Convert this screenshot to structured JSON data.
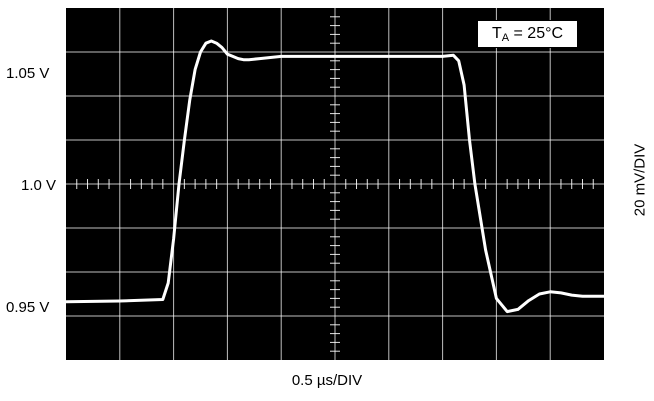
{
  "chart_data": {
    "type": "line",
    "title": "",
    "xlabel": "0.5 µs/DIV",
    "ylabel": "20 mV/DIV",
    "annotation": {
      "symbol": "T",
      "subscript": "A",
      "value": " = 25°C"
    },
    "y_ticks": [
      "1.05 V",
      "1.0 V",
      "0.95 V"
    ],
    "grid": true,
    "x_divisions": 10,
    "y_divisions": 8,
    "xlim": [
      0,
      5
    ],
    "ylim": [
      0.92,
      1.08
    ],
    "series": [
      {
        "color": "#ffffff",
        "x": [
          0,
          0.5,
          0.9,
          0.95,
          1.0,
          1.05,
          1.1,
          1.15,
          1.2,
          1.25,
          1.3,
          1.35,
          1.4,
          1.45,
          1.5,
          1.55,
          1.6,
          1.65,
          1.7,
          1.8,
          1.9,
          2.0,
          2.2,
          2.5,
          3.0,
          3.5,
          3.6,
          3.65,
          3.7,
          3.75,
          3.8,
          3.9,
          4.0,
          4.1,
          4.2,
          4.3,
          4.4,
          4.5,
          4.6,
          4.7,
          4.8,
          4.9,
          5.0
        ],
        "y": [
          0.9465,
          0.9468,
          0.9475,
          0.955,
          0.975,
          1.0,
          1.02,
          1.038,
          1.052,
          1.06,
          1.064,
          1.065,
          1.064,
          1.062,
          1.059,
          1.058,
          1.057,
          1.0565,
          1.0565,
          1.057,
          1.0575,
          1.058,
          1.058,
          1.058,
          1.058,
          1.058,
          1.0585,
          1.056,
          1.045,
          1.02,
          1.0,
          0.97,
          0.948,
          0.942,
          0.943,
          0.947,
          0.95,
          0.951,
          0.9505,
          0.9495,
          0.949,
          0.949,
          0.949
        ]
      }
    ]
  }
}
